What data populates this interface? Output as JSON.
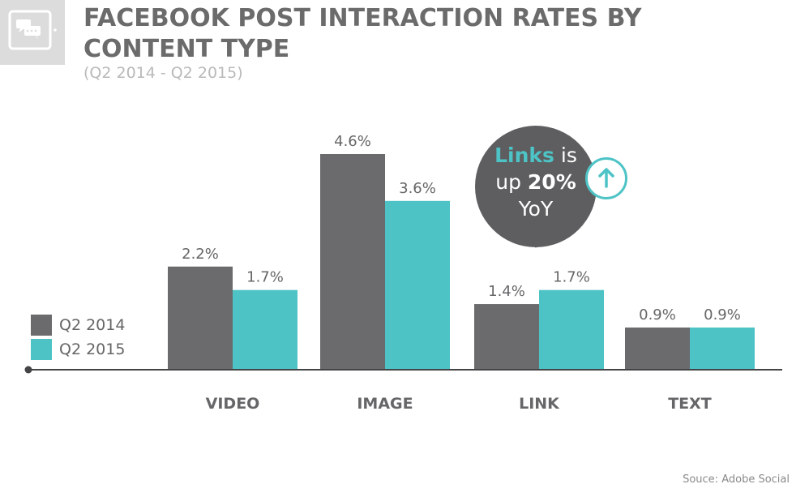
{
  "header": {
    "title": "FACEBOOK POST INTERACTION RATES BY CONTENT TYPE",
    "subtitle": "(Q2 2014 - Q2 2015)",
    "icon": "chat-bubbles-icon"
  },
  "callout": {
    "highlight": "Links",
    "text_after_highlight": " is",
    "line2_prefix": "up ",
    "line2_strong": "20%",
    "line3": "YoY",
    "badge_icon": "arrow-up-icon"
  },
  "source": "Souce: Adobe Social",
  "colors": {
    "q2_2014": "#6b6b6d",
    "q2_2015": "#4dc3c6",
    "axis": "#444446",
    "text": "#666668"
  },
  "chart_data": {
    "type": "bar",
    "title": "FACEBOOK POST INTERACTION RATES BY CONTENT TYPE",
    "subtitle": "(Q2 2014 - Q2 2015)",
    "categories": [
      "VIDEO",
      "IMAGE",
      "LINK",
      "TEXT"
    ],
    "series": [
      {
        "name": "Q2 2014",
        "values": [
          2.2,
          4.6,
          1.4,
          0.9
        ],
        "labels": [
          "2.2%",
          "4.6%",
          "1.4%",
          "0.9%"
        ]
      },
      {
        "name": "Q2 2015",
        "values": [
          1.7,
          3.6,
          1.7,
          0.9
        ],
        "labels": [
          "1.7%",
          "3.6%",
          "1.7%",
          "0.9%"
        ]
      }
    ],
    "unit": "%",
    "ylim": [
      0,
      4.6
    ],
    "grid": false,
    "legend": "left"
  }
}
